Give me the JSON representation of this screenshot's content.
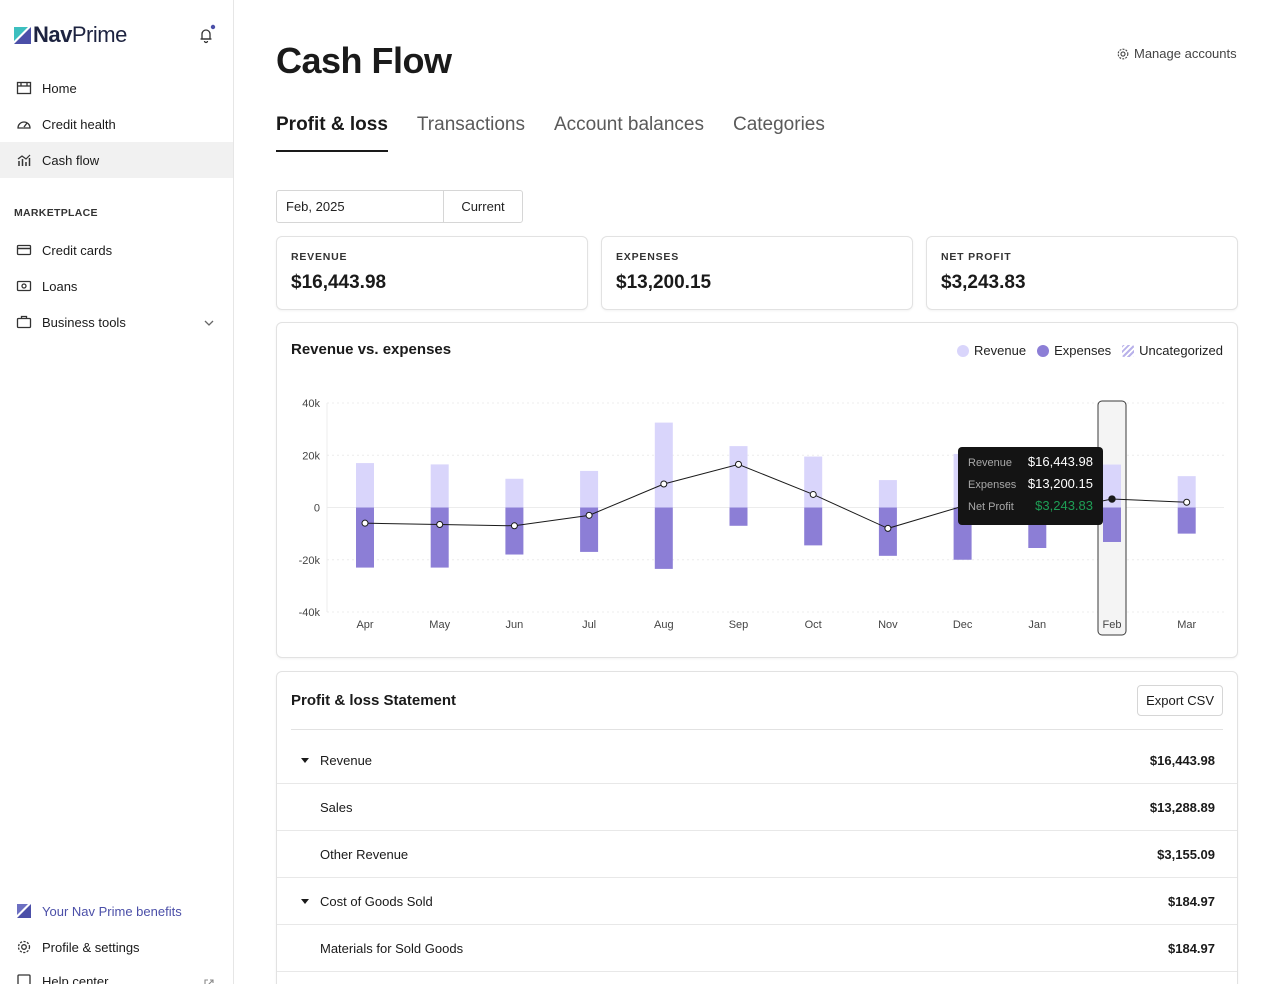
{
  "brand": {
    "name_bold": "Nav",
    "name_regular": "Prime"
  },
  "sidebar": {
    "items": [
      {
        "label": "Home",
        "icon": "home-icon"
      },
      {
        "label": "Credit health",
        "icon": "gauge-icon"
      },
      {
        "label": "Cash flow",
        "icon": "chart-icon",
        "active": true
      }
    ],
    "section_label": "MARKETPLACE",
    "marketplace_items": [
      {
        "label": "Credit cards",
        "icon": "credit-card-icon"
      },
      {
        "label": "Loans",
        "icon": "cash-icon"
      },
      {
        "label": "Business tools",
        "icon": "briefcase-icon"
      }
    ],
    "footer_items": [
      {
        "label": "Your Nav Prime benefits",
        "icon": "nav-prime-icon"
      },
      {
        "label": "Profile & settings",
        "icon": "gear-icon"
      },
      {
        "label": "Help center",
        "icon": "help-icon"
      }
    ]
  },
  "page": {
    "title": "Cash Flow",
    "manage_label": "Manage accounts",
    "tabs": [
      {
        "label": "Profit & loss",
        "active": true
      },
      {
        "label": "Transactions"
      },
      {
        "label": "Account balances"
      },
      {
        "label": "Categories"
      }
    ],
    "date_value": "Feb, 2025",
    "current_label": "Current"
  },
  "kpis": [
    {
      "label": "REVENUE",
      "value": "$16,443.98"
    },
    {
      "label": "EXPENSES",
      "value": "$13,200.15"
    },
    {
      "label": "NET PROFIT",
      "value": "$3,243.83"
    }
  ],
  "chart_card": {
    "title": "Revenue vs. expenses",
    "legend": [
      "Revenue",
      "Expenses",
      "Uncategorized"
    ]
  },
  "chart_data": {
    "type": "bar",
    "title": "Revenue vs. expenses",
    "categories": [
      "Apr",
      "May",
      "Jun",
      "Jul",
      "Aug",
      "Sep",
      "Oct",
      "Nov",
      "Dec",
      "Jan",
      "Feb",
      "Mar"
    ],
    "series": [
      {
        "name": "Revenue",
        "values": [
          17000,
          16500,
          11000,
          14000,
          32500,
          23500,
          19500,
          10500,
          20500,
          13000,
          16443.98,
          12000
        ]
      },
      {
        "name": "Expenses",
        "values": [
          -23000,
          -23000,
          -18000,
          -17000,
          -23500,
          -7000,
          -14500,
          -18500,
          -20000,
          -15500,
          -13200.15,
          -10000
        ]
      },
      {
        "name": "Net Profit",
        "type": "line",
        "values": [
          -6000,
          -6500,
          -7000,
          -3000,
          9000,
          16500,
          5000,
          -8000,
          500,
          -2500,
          3243.83,
          2000
        ]
      }
    ],
    "ylim": [
      -40000,
      40000
    ],
    "yticks": [
      40000,
      20000,
      0,
      -20000,
      -40000
    ],
    "ytick_labels": [
      "40k",
      "20k",
      "0",
      "-20k",
      "-40k"
    ],
    "legend_position": "top-right",
    "grid": true,
    "highlighted_category": "Feb",
    "colors": {
      "revenue": "#d9d5fb",
      "expenses": "#8c7ed6",
      "line": "#1a1a1a",
      "uncategorized": "#b9b2ea"
    },
    "tooltip": {
      "rows": [
        {
          "label": "Revenue",
          "value": "$16,443.98"
        },
        {
          "label": "Expenses",
          "value": "$13,200.15"
        },
        {
          "label": "Net Profit",
          "value": "$3,243.83"
        }
      ]
    }
  },
  "statement": {
    "title": "Profit & loss Statement",
    "export_label": "Export CSV",
    "rows": [
      {
        "label": "Revenue",
        "amount": "$16,443.98",
        "expandable": true
      },
      {
        "label": "Sales",
        "amount": "$13,288.89"
      },
      {
        "label": "Other Revenue",
        "amount": "$3,155.09"
      },
      {
        "label": "Cost of Goods Sold",
        "amount": "$184.97",
        "expandable": true
      },
      {
        "label": "Materials for Sold Goods",
        "amount": "$184.97"
      }
    ]
  }
}
